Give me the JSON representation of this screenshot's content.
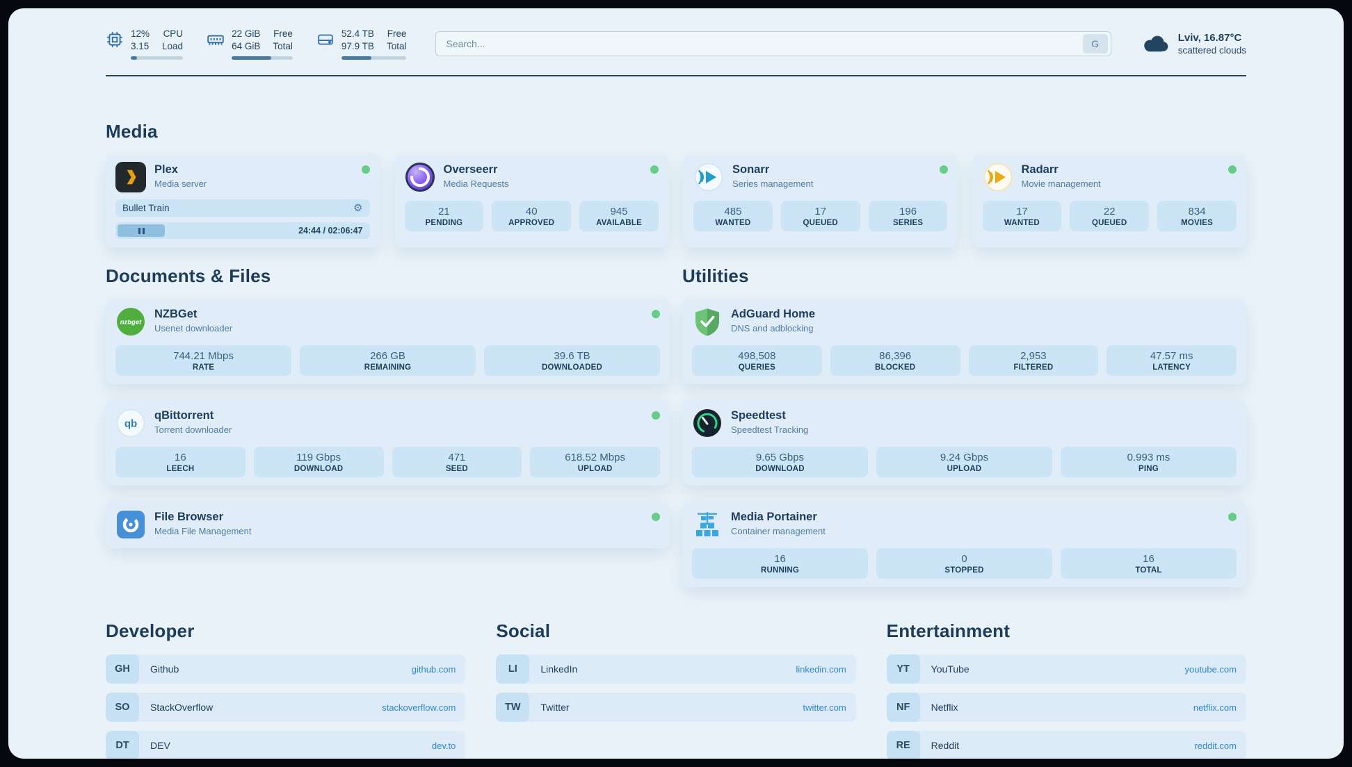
{
  "colors": {
    "accent": "#2f87cc",
    "status_online": "#66cd88",
    "tile": "#cbe4f6"
  },
  "topbar": {
    "cpu": {
      "percent": "12%",
      "load": "3.15",
      "label_top": "CPU",
      "label_bottom": "Load",
      "progress": 12
    },
    "memory": {
      "free": "22 GiB",
      "total": "64 GiB",
      "label_top": "Free",
      "label_bottom": "Total",
      "progress": 65
    },
    "disk": {
      "free": "52.4 TB",
      "total": "97.9 TB",
      "label_top": "Free",
      "label_bottom": "Total",
      "progress": 46
    },
    "search": {
      "placeholder": "Search...",
      "button_label": "G"
    },
    "weather": {
      "location": "Lviv, 16.87°C",
      "condition": "scattered clouds"
    }
  },
  "sections": {
    "media": {
      "title": "Media",
      "plex": {
        "name": "Plex",
        "desc": "Media server",
        "now_playing": {
          "title": "Bullet Train",
          "time": "24:44 / 02:06:47",
          "progress": 19
        }
      },
      "overseerr": {
        "name": "Overseerr",
        "desc": "Media Requests",
        "stats": [
          {
            "value": "21",
            "label": "PENDING"
          },
          {
            "value": "40",
            "label": "APPROVED"
          },
          {
            "value": "945",
            "label": "AVAILABLE"
          }
        ]
      },
      "sonarr": {
        "name": "Sonarr",
        "desc": "Series management",
        "stats": [
          {
            "value": "485",
            "label": "WANTED"
          },
          {
            "value": "17",
            "label": "QUEUED"
          },
          {
            "value": "196",
            "label": "SERIES"
          }
        ]
      },
      "radarr": {
        "name": "Radarr",
        "desc": "Movie management",
        "stats": [
          {
            "value": "17",
            "label": "WANTED"
          },
          {
            "value": "22",
            "label": "QUEUED"
          },
          {
            "value": "834",
            "label": "MOVIES"
          }
        ]
      }
    },
    "documents": {
      "title": "Documents & Files",
      "nzbget": {
        "name": "NZBGet",
        "desc": "Usenet downloader",
        "stats": [
          {
            "value": "744.21 Mbps",
            "label": "RATE"
          },
          {
            "value": "266 GB",
            "label": "REMAINING"
          },
          {
            "value": "39.6 TB",
            "label": "DOWNLOADED"
          }
        ]
      },
      "qbittorrent": {
        "name": "qBittorrent",
        "desc": "Torrent downloader",
        "stats": [
          {
            "value": "16",
            "label": "LEECH"
          },
          {
            "value": "119 Gbps",
            "label": "DOWNLOAD"
          },
          {
            "value": "471",
            "label": "SEED"
          },
          {
            "value": "618.52 Mbps",
            "label": "UPLOAD"
          }
        ]
      },
      "filebrowser": {
        "name": "File Browser",
        "desc": "Media File Management"
      }
    },
    "utilities": {
      "title": "Utilities",
      "adguard": {
        "name": "AdGuard Home",
        "desc": "DNS and adblocking",
        "stats": [
          {
            "value": "498,508",
            "label": "QUERIES"
          },
          {
            "value": "86,396",
            "label": "BLOCKED"
          },
          {
            "value": "2,953",
            "label": "FILTERED"
          },
          {
            "value": "47.57 ms",
            "label": "LATENCY"
          }
        ]
      },
      "speedtest": {
        "name": "Speedtest",
        "desc": "Speedtest Tracking",
        "stats": [
          {
            "value": "9.65 Gbps",
            "label": "DOWNLOAD"
          },
          {
            "value": "9.24 Gbps",
            "label": "UPLOAD"
          },
          {
            "value": "0.993 ms",
            "label": "PING"
          }
        ]
      },
      "portainer": {
        "name": "Media Portainer",
        "desc": "Container management",
        "stats": [
          {
            "value": "16",
            "label": "RUNNING"
          },
          {
            "value": "0",
            "label": "STOPPED"
          },
          {
            "value": "16",
            "label": "TOTAL"
          }
        ]
      }
    }
  },
  "bookmarks": {
    "developer": {
      "title": "Developer",
      "items": [
        {
          "abbr": "GH",
          "name": "Github",
          "url": "github.com"
        },
        {
          "abbr": "SO",
          "name": "StackOverflow",
          "url": "stackoverflow.com"
        },
        {
          "abbr": "DT",
          "name": "DEV",
          "url": "dev.to"
        }
      ]
    },
    "social": {
      "title": "Social",
      "items": [
        {
          "abbr": "LI",
          "name": "LinkedIn",
          "url": "linkedin.com"
        },
        {
          "abbr": "TW",
          "name": "Twitter",
          "url": "twitter.com"
        }
      ]
    },
    "entertainment": {
      "title": "Entertainment",
      "items": [
        {
          "abbr": "YT",
          "name": "YouTube",
          "url": "youtube.com"
        },
        {
          "abbr": "NF",
          "name": "Netflix",
          "url": "netflix.com"
        },
        {
          "abbr": "RE",
          "name": "Reddit",
          "url": "reddit.com"
        }
      ]
    }
  }
}
